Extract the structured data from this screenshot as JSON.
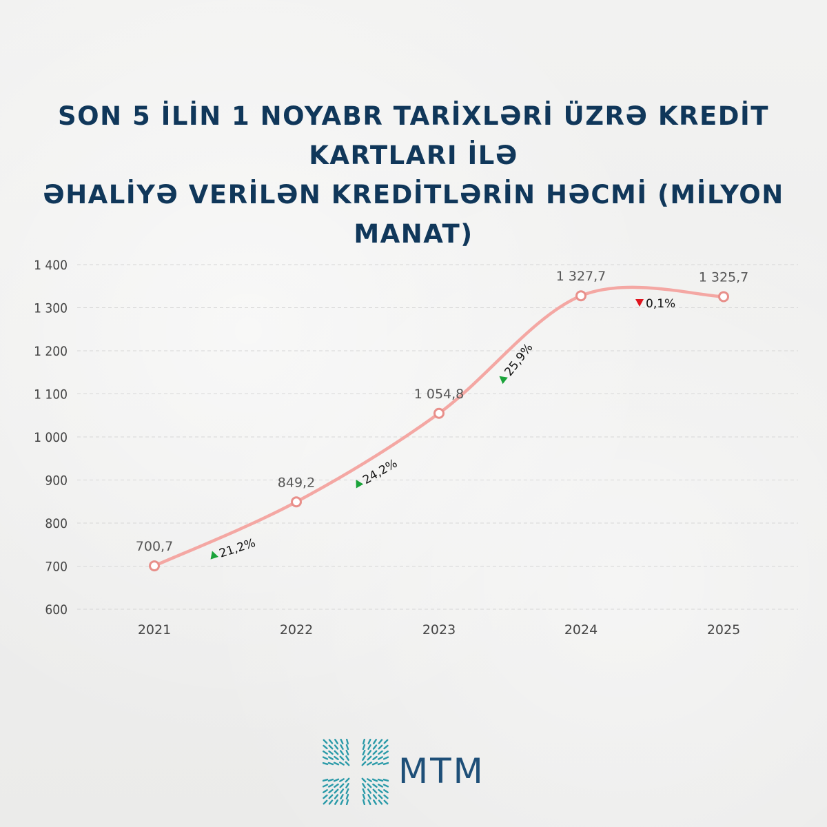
{
  "title_lines": [
    "SON 5 İLİN 1 NOYABR TARİXLƏRİ ÜZRƏ KREDİT KARTLARI İLƏ",
    "ƏHALİYƏ VERİLƏN KREDİTLƏRİN HƏCMİ (MİLYON MANAT)"
  ],
  "chart_data": {
    "type": "line",
    "categories": [
      "2021",
      "2022",
      "2023",
      "2024",
      "2025"
    ],
    "series": [
      {
        "values": [
          700.7,
          849.2,
          1054.8,
          1327.7,
          1325.7
        ]
      }
    ],
    "value_labels": [
      "700,7",
      "849,2",
      "1 054,8",
      "1 327,7",
      "1 325,7"
    ],
    "ylim": [
      600,
      1400
    ],
    "yticks": [
      600,
      700,
      800,
      900,
      1000,
      1100,
      1200,
      1300,
      1400
    ],
    "ytick_labels": [
      "600",
      "700",
      "800",
      "900",
      "1 000",
      "1 100",
      "1 200",
      "1 300",
      "1 400"
    ],
    "changes": [
      {
        "label": "21,2%",
        "direction": "up"
      },
      {
        "label": "24,2%",
        "direction": "up"
      },
      {
        "label": "25,9%",
        "direction": "up"
      },
      {
        "label": "0,1%",
        "direction": "down"
      }
    ],
    "grid": true,
    "line_color": "#f4a7a3",
    "up_color": "#1aa33a",
    "down_color": "#e0141e"
  },
  "logo": {
    "text": "MTM",
    "color": "#1e4f78",
    "mark_color": "#2a9aa8"
  }
}
